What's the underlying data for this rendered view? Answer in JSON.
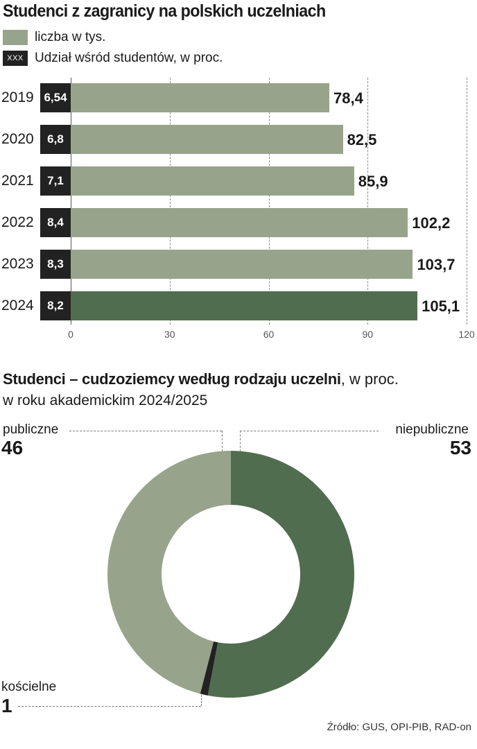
{
  "title": "Studenci z zagranicy na polskich uczelniach",
  "legend": {
    "green_label": "liczba w tys.",
    "black_swatch_text": "XXX",
    "black_label": "Udział wśród studentów, w proc."
  },
  "colors": {
    "light_green": "#97a48b",
    "dark_green": "#516d4f",
    "black": "#222222"
  },
  "chart_data": [
    {
      "type": "bar",
      "orientation": "horizontal",
      "title": "Studenci z zagranicy na polskich uczelniach",
      "categories": [
        "2019",
        "2020",
        "2021",
        "2022",
        "2023",
        "2024"
      ],
      "series": [
        {
          "name": "liczba w tys.",
          "values": [
            78.4,
            82.5,
            85.9,
            102.2,
            103.7,
            105.1
          ]
        },
        {
          "name": "Udział wśród studentów, w proc.",
          "values": [
            6.54,
            6.8,
            7.1,
            8.4,
            8.3,
            8.2
          ]
        }
      ],
      "value_labels": [
        "78,4",
        "82,5",
        "85,9",
        "102,2",
        "103,7",
        "105,1"
      ],
      "share_labels": [
        "6,54",
        "6,8",
        "7,1",
        "8,4",
        "8,3",
        "8,2"
      ],
      "highlighted_category": "2024",
      "xlim": [
        0,
        120
      ],
      "xticks": [
        "0",
        "30",
        "60",
        "90",
        "120"
      ],
      "grid": true
    },
    {
      "type": "pie",
      "donut": true,
      "title": "Studenci – cudzoziemcy według rodzaju uczelni",
      "title_suffix": ", w proc.",
      "subtitle": "w roku akademickim 2024/2025",
      "categories": [
        "niepubliczne",
        "kościelne",
        "publiczne"
      ],
      "values": [
        53,
        1,
        46
      ],
      "value_labels": [
        "53",
        "1",
        "46"
      ]
    }
  ],
  "source": "Źródło: GUS, OPI-PIB, RAD-on"
}
